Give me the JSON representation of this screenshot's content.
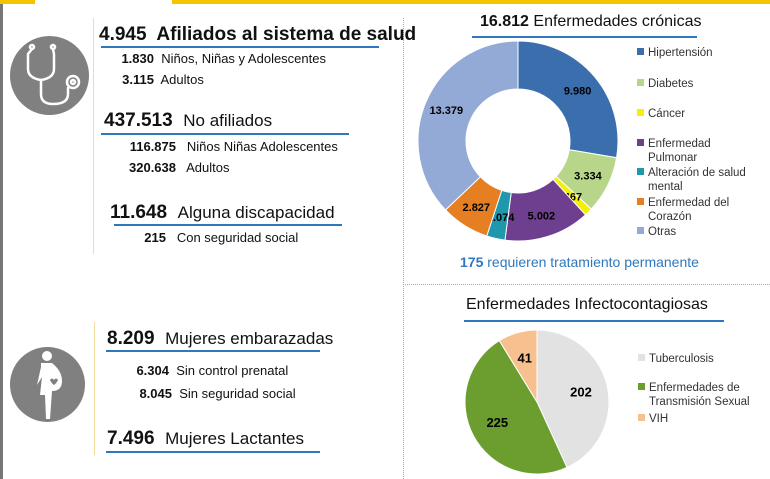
{
  "health": {
    "affiliated": {
      "value": "4.945",
      "label": "Afiliados al sistema de salud",
      "items": [
        {
          "value": "1.830",
          "label": "Niños, Niñas y  Adolescentes"
        },
        {
          "value": "3.115",
          "label": "Adultos"
        }
      ]
    },
    "not_affiliated": {
      "value": "437.513",
      "label": "No afiliados",
      "items": [
        {
          "value": "116.875",
          "label": "Niños Niñas Adolescentes"
        },
        {
          "value": "320.638",
          "label": "Adultos"
        }
      ]
    },
    "disability": {
      "value": "11.648",
      "label": "Alguna discapacidad",
      "items": [
        {
          "value": "215",
          "label": "Con seguridad social"
        }
      ]
    }
  },
  "women": {
    "pregnant": {
      "value": "8.209",
      "label": "Mujeres embarazadas",
      "items": [
        {
          "value": "6.304",
          "label": "Sin control prenatal"
        },
        {
          "value": "8.045",
          "label": "Sin seguridad social"
        }
      ]
    },
    "lactating": {
      "value": "7.496",
      "label": "Mujeres Lactantes"
    }
  },
  "chart_data": [
    {
      "type": "pie",
      "variant": "donut",
      "title_value": "16.812",
      "title": "Enfermedades crónicas",
      "categories": [
        "Hipertensión",
        "Diabetes",
        "Cáncer",
        "Enfermedad Pulmonar",
        "Alteración de salud mental",
        "Enfermedad del Corazón",
        "Otras"
      ],
      "legend_lines": [
        [
          "Hipertensión"
        ],
        [
          "Diabetes"
        ],
        [
          "Cáncer"
        ],
        [
          "Enfermedad",
          "Pulmonar"
        ],
        [
          "Alteración de salud",
          "mental"
        ],
        [
          "Enfermedad del",
          "Corazón"
        ],
        [
          "Otras"
        ]
      ],
      "values": [
        9980,
        3334,
        467,
        5002,
        1074,
        2827,
        13379
      ],
      "labels": [
        "9.980",
        "3.334",
        "467",
        "5.002",
        "1.074",
        "2.827",
        "13.379"
      ],
      "colors": [
        "#3a6ead",
        "#b7d68a",
        "#f5f000",
        "#6f3f8f",
        "#1f97ad",
        "#e67e22",
        "#93a9d6"
      ],
      "legend": "right",
      "footnote_value": "175",
      "footnote": "requieren tratamiento permanente"
    },
    {
      "type": "pie",
      "title": "Enfermedades Infectocontagiosas",
      "categories": [
        "Tuberculosis",
        "Enfermedades de Transmisión Sexual",
        "VIH"
      ],
      "legend_lines": [
        [
          "Tuberculosis"
        ],
        [
          "Enfermedades de",
          "Transmisión Sexual"
        ],
        [
          "VIH"
        ]
      ],
      "values": [
        202,
        225,
        41
      ],
      "labels": [
        "202",
        "225",
        "41"
      ],
      "colors": [
        "#e2e2e2",
        "#6b9e2e",
        "#f7c08f"
      ],
      "legend": "right"
    }
  ]
}
